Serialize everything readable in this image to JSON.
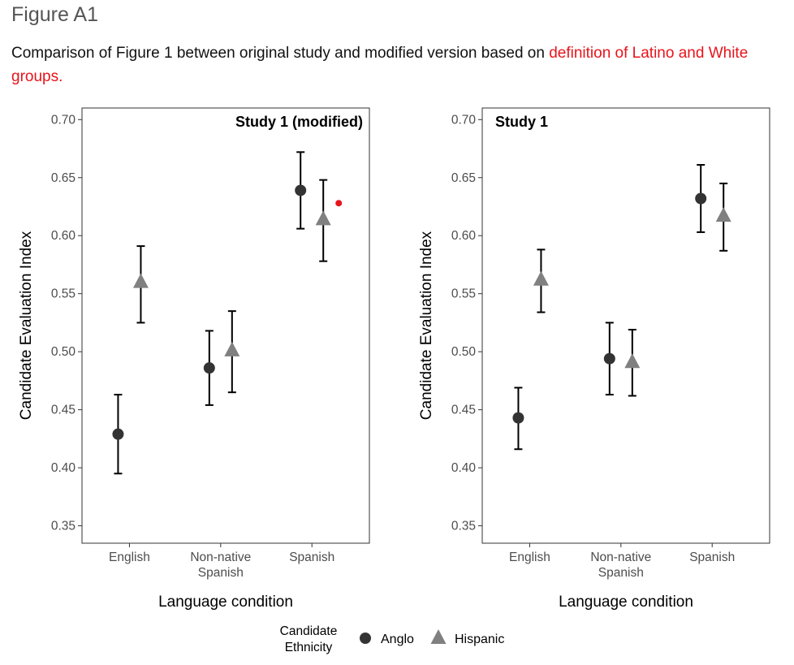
{
  "figure_label": "Figure A1",
  "caption": {
    "text": "Comparison of Figure 1 between original study and modified version based on ",
    "highlight": "definition of Latino and White groups.",
    "highlight_color": "#e8141b"
  },
  "legend": {
    "title_line1": "Candidate",
    "title_line2": "Ethnicity",
    "items": [
      {
        "label": "Anglo",
        "shape": "circle",
        "color": "#333333"
      },
      {
        "label": "Hispanic",
        "shape": "triangle",
        "color": "#808080"
      }
    ]
  },
  "chart_data": [
    {
      "type": "scatter",
      "title": "Study 1 (modified)",
      "xlabel": "Language condition",
      "ylabel": "Candidate Evaluation Index",
      "categories": [
        "English",
        "Non-native Spanish",
        "Spanish"
      ],
      "ylim": [
        0.335,
        0.71
      ],
      "yticks": [
        "0.35",
        "0.40",
        "0.45",
        "0.50",
        "0.55",
        "0.60",
        "0.65",
        "0.70"
      ],
      "grid": false,
      "series": [
        {
          "name": "Anglo",
          "shape": "circle",
          "color": "#333333",
          "values": [
            0.429,
            0.486,
            0.639
          ],
          "lower": [
            0.395,
            0.454,
            0.606
          ],
          "upper": [
            0.463,
            0.518,
            0.672
          ]
        },
        {
          "name": "Hispanic",
          "shape": "triangle",
          "color": "#808080",
          "values": [
            0.56,
            0.501,
            0.614
          ],
          "lower": [
            0.525,
            0.465,
            0.578
          ],
          "upper": [
            0.591,
            0.535,
            0.648
          ]
        }
      ],
      "annotations": [
        {
          "category": "Spanish",
          "value": 0.628,
          "color": "#e8141b",
          "shape": "dot"
        }
      ]
    },
    {
      "type": "scatter",
      "title": "Study 1",
      "xlabel": "Language condition",
      "ylabel": "Candidate Evaluation Index",
      "categories": [
        "English",
        "Non-native Spanish",
        "Spanish"
      ],
      "ylim": [
        0.335,
        0.71
      ],
      "yticks": [
        "0.35",
        "0.40",
        "0.45",
        "0.50",
        "0.55",
        "0.60",
        "0.65",
        "0.70"
      ],
      "grid": false,
      "series": [
        {
          "name": "Anglo",
          "shape": "circle",
          "color": "#333333",
          "values": [
            0.443,
            0.494,
            0.632
          ],
          "lower": [
            0.416,
            0.463,
            0.603
          ],
          "upper": [
            0.469,
            0.525,
            0.661
          ]
        },
        {
          "name": "Hispanic",
          "shape": "triangle",
          "color": "#808080",
          "values": [
            0.562,
            0.491,
            0.617
          ],
          "lower": [
            0.534,
            0.462,
            0.587
          ],
          "upper": [
            0.588,
            0.519,
            0.645
          ]
        }
      ],
      "annotations": []
    }
  ]
}
